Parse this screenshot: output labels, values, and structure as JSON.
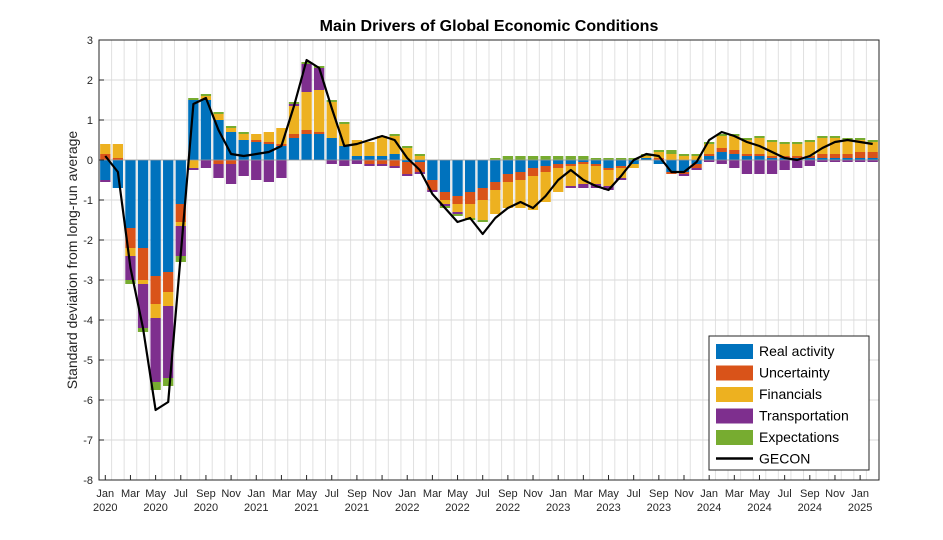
{
  "chart_data": {
    "type": "bar",
    "title": "Main Drivers of Global Economic Conditions",
    "xlabel": "",
    "ylabel": "Standard deviation from long-run average",
    "ylim": [
      -8,
      3
    ],
    "yticks": [
      3,
      2,
      1,
      0,
      -1,
      -2,
      -3,
      -4,
      -5,
      -6,
      -7,
      -8
    ],
    "grid": true,
    "legend_position": "bottom-right",
    "x_tick_labels": [
      {
        "month": "Jan",
        "year": "2020"
      },
      {
        "month": "Mar",
        "year": ""
      },
      {
        "month": "May",
        "year": "2020"
      },
      {
        "month": "Jul",
        "year": ""
      },
      {
        "month": "Sep",
        "year": "2020"
      },
      {
        "month": "Nov",
        "year": ""
      },
      {
        "month": "Jan",
        "year": "2021"
      },
      {
        "month": "Mar",
        "year": ""
      },
      {
        "month": "May",
        "year": "2021"
      },
      {
        "month": "Jul",
        "year": ""
      },
      {
        "month": "Sep",
        "year": "2021"
      },
      {
        "month": "Nov",
        "year": ""
      },
      {
        "month": "Jan",
        "year": "2022"
      },
      {
        "month": "Mar",
        "year": ""
      },
      {
        "month": "May",
        "year": "2022"
      },
      {
        "month": "Jul",
        "year": ""
      },
      {
        "month": "Sep",
        "year": "2022"
      },
      {
        "month": "Nov",
        "year": ""
      },
      {
        "month": "Jan",
        "year": "2023"
      },
      {
        "month": "Mar",
        "year": ""
      },
      {
        "month": "May",
        "year": "2023"
      },
      {
        "month": "Jul",
        "year": ""
      },
      {
        "month": "Sep",
        "year": "2023"
      },
      {
        "month": "Nov",
        "year": ""
      },
      {
        "month": "Jan",
        "year": "2024"
      },
      {
        "month": "Mar",
        "year": ""
      },
      {
        "month": "May",
        "year": "2024"
      },
      {
        "month": "Jul",
        "year": ""
      },
      {
        "month": "Sep",
        "year": "2024"
      },
      {
        "month": "Nov",
        "year": ""
      },
      {
        "month": "Jan",
        "year": "2025"
      }
    ],
    "x": [
      "2020-01",
      "2020-02",
      "2020-03",
      "2020-04",
      "2020-05",
      "2020-06",
      "2020-07",
      "2020-08",
      "2020-09",
      "2020-10",
      "2020-11",
      "2020-12",
      "2021-01",
      "2021-02",
      "2021-03",
      "2021-04",
      "2021-05",
      "2021-06",
      "2021-07",
      "2021-08",
      "2021-09",
      "2021-10",
      "2021-11",
      "2021-12",
      "2022-01",
      "2022-02",
      "2022-03",
      "2022-04",
      "2022-05",
      "2022-06",
      "2022-07",
      "2022-08",
      "2022-09",
      "2022-10",
      "2022-11",
      "2022-12",
      "2023-01",
      "2023-02",
      "2023-03",
      "2023-04",
      "2023-05",
      "2023-06",
      "2023-07",
      "2023-08",
      "2023-09",
      "2023-10",
      "2023-11",
      "2023-12",
      "2024-01",
      "2024-02",
      "2024-03",
      "2024-04",
      "2024-05",
      "2024-06",
      "2024-07",
      "2024-08",
      "2024-09",
      "2024-10",
      "2024-11",
      "2024-12",
      "2025-01",
      "2025-02"
    ],
    "series": [
      {
        "name": "Real activity",
        "color": "#0072BD",
        "type": "bar",
        "values": [
          -0.5,
          -0.7,
          -1.7,
          -2.2,
          -2.9,
          -2.8,
          -1.1,
          1.5,
          1.5,
          1.0,
          0.7,
          0.5,
          0.45,
          0.4,
          0.35,
          0.55,
          0.65,
          0.65,
          0.55,
          0.35,
          0.1,
          0.1,
          0.1,
          0.15,
          -0.05,
          -0.05,
          -0.5,
          -0.8,
          -0.9,
          -0.8,
          -0.7,
          -0.55,
          -0.35,
          -0.3,
          -0.2,
          -0.15,
          -0.1,
          -0.1,
          -0.05,
          -0.1,
          -0.2,
          -0.15,
          -0.1,
          0.05,
          -0.1,
          -0.3,
          -0.3,
          -0.1,
          0.1,
          0.2,
          0.15,
          0.1,
          0.1,
          0.05,
          0.05,
          0.05,
          0.05,
          0.05,
          0.05,
          0.05,
          0.05,
          0.05
        ]
      },
      {
        "name": "Uncertainty",
        "color": "#D95319",
        "type": "bar",
        "values": [
          0.15,
          0.05,
          -0.5,
          -0.8,
          -0.7,
          -0.5,
          -0.45,
          0.0,
          0.0,
          -0.1,
          -0.1,
          0.0,
          0.05,
          0.05,
          0.05,
          0.1,
          0.1,
          0.05,
          0.0,
          0.0,
          0.0,
          -0.1,
          -0.1,
          -0.15,
          -0.3,
          -0.25,
          -0.25,
          -0.2,
          -0.2,
          -0.3,
          -0.3,
          -0.2,
          -0.2,
          -0.2,
          -0.2,
          -0.15,
          -0.1,
          -0.05,
          -0.05,
          -0.05,
          -0.05,
          -0.05,
          0.0,
          0.0,
          0.05,
          -0.05,
          -0.05,
          -0.1,
          0.05,
          0.1,
          0.1,
          0.05,
          0.05,
          0.05,
          0.05,
          0.05,
          0.05,
          0.1,
          0.1,
          0.1,
          0.15,
          0.15
        ]
      },
      {
        "name": "Financials",
        "color": "#EDB120",
        "type": "bar",
        "values": [
          0.25,
          0.35,
          -0.2,
          -0.1,
          -0.35,
          -0.35,
          -0.1,
          -0.2,
          0.1,
          0.15,
          0.1,
          0.15,
          0.15,
          0.25,
          0.4,
          0.7,
          0.95,
          1.05,
          0.9,
          0.55,
          0.4,
          0.35,
          0.5,
          0.45,
          0.3,
          0.1,
          0.0,
          -0.1,
          -0.2,
          -0.35,
          -0.5,
          -0.6,
          -0.65,
          -0.7,
          -0.85,
          -0.75,
          -0.6,
          -0.5,
          -0.5,
          -0.45,
          -0.4,
          -0.25,
          -0.1,
          0.05,
          0.15,
          0.15,
          0.1,
          0.1,
          0.25,
          0.3,
          0.35,
          0.35,
          0.4,
          0.35,
          0.3,
          0.3,
          0.35,
          0.4,
          0.4,
          0.35,
          0.3,
          0.25
        ]
      },
      {
        "name": "Transportation",
        "color": "#7E2F8E",
        "type": "bar",
        "values": [
          -0.05,
          0.0,
          -0.6,
          -1.1,
          -1.6,
          -1.8,
          -0.75,
          -0.05,
          -0.2,
          -0.35,
          -0.5,
          -0.4,
          -0.5,
          -0.55,
          -0.45,
          0.05,
          0.7,
          0.55,
          -0.1,
          -0.15,
          -0.1,
          -0.05,
          -0.05,
          -0.05,
          -0.05,
          -0.05,
          -0.05,
          -0.05,
          -0.05,
          0.0,
          0.0,
          0.0,
          0.0,
          0.0,
          0.0,
          0.0,
          0.0,
          -0.05,
          -0.1,
          -0.1,
          -0.1,
          -0.05,
          0.0,
          0.0,
          0.0,
          0.0,
          -0.05,
          -0.05,
          -0.05,
          -0.1,
          -0.2,
          -0.35,
          -0.35,
          -0.35,
          -0.25,
          -0.2,
          -0.15,
          -0.05,
          -0.05,
          -0.05,
          -0.05,
          -0.05
        ]
      },
      {
        "name": "Expectations",
        "color": "#77AC30",
        "type": "bar",
        "values": [
          0.0,
          0.0,
          -0.1,
          -0.1,
          -0.2,
          -0.2,
          -0.15,
          0.05,
          0.05,
          0.05,
          0.05,
          0.05,
          0.0,
          0.0,
          0.0,
          0.05,
          0.05,
          0.05,
          0.05,
          0.05,
          0.0,
          0.0,
          0.0,
          0.05,
          0.05,
          0.05,
          0.0,
          -0.05,
          -0.05,
          -0.05,
          -0.05,
          0.05,
          0.1,
          0.1,
          0.1,
          0.1,
          0.1,
          0.1,
          0.1,
          0.05,
          0.05,
          0.05,
          0.05,
          0.05,
          0.05,
          0.1,
          0.05,
          0.05,
          0.05,
          0.05,
          0.05,
          0.05,
          0.05,
          0.05,
          0.05,
          0.05,
          0.05,
          0.05,
          0.05,
          0.05,
          0.05,
          0.05
        ]
      },
      {
        "name": "GECON",
        "color": "#000000",
        "type": "line",
        "values": [
          0.1,
          -0.3,
          -2.7,
          -4.2,
          -6.25,
          -6.05,
          -2.35,
          1.4,
          1.55,
          0.75,
          0.15,
          0.1,
          0.15,
          0.2,
          0.35,
          1.35,
          2.5,
          2.3,
          1.3,
          0.35,
          0.4,
          0.5,
          0.6,
          0.5,
          0.05,
          -0.25,
          -0.85,
          -1.2,
          -1.55,
          -1.45,
          -1.85,
          -1.45,
          -1.2,
          -1.05,
          -1.2,
          -0.9,
          -0.5,
          -0.25,
          -0.5,
          -0.65,
          -0.75,
          -0.4,
          0.0,
          0.15,
          0.1,
          -0.3,
          -0.3,
          -0.05,
          0.5,
          0.7,
          0.6,
          0.45,
          0.35,
          0.2,
          0.05,
          0.0,
          0.1,
          0.3,
          0.45,
          0.5,
          0.45,
          0.4
        ]
      }
    ]
  }
}
